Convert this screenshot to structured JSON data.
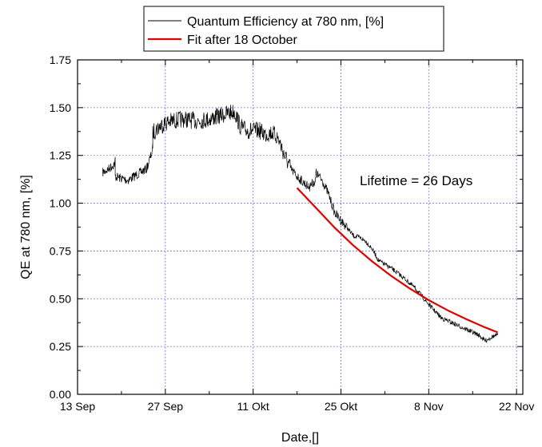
{
  "chart_data": {
    "type": "line",
    "title": "",
    "xlabel": "Date,[]",
    "ylabel": "QE at 780 nm, [%]",
    "x_ticks": [
      "13 Sep",
      "27 Sep",
      "11 Okt",
      "25 Okt",
      "8 Nov",
      "22 Nov"
    ],
    "x_tick_dates": [
      "2008-09-13",
      "2008-09-27",
      "2008-10-11",
      "2008-10-25",
      "2008-11-08",
      "2008-11-22"
    ],
    "xlim": [
      "2008-09-13",
      "2008-11-23"
    ],
    "ylim": [
      0,
      1.75
    ],
    "y_ticks": [
      "0.00",
      "0.25",
      "0.50",
      "0.75",
      "1.00",
      "1.25",
      "1.50",
      "1.75"
    ],
    "grid": true,
    "legend_position": "top-center",
    "annotation": "Lifetime = 26 Days",
    "series": [
      {
        "name": "Quantum Efficiency at 780 nm, [%]",
        "color": "#000000",
        "style": "noisy",
        "x": [
          "2008-09-17",
          "2008-09-18",
          "2008-09-19",
          "2008-09-19",
          "2008-09-20",
          "2008-09-21",
          "2008-09-22",
          "2008-09-23",
          "2008-09-24",
          "2008-09-25",
          "2008-09-25",
          "2008-09-26",
          "2008-09-27",
          "2008-09-28",
          "2008-09-30",
          "2008-10-02",
          "2008-10-04",
          "2008-10-06",
          "2008-10-07",
          "2008-10-08",
          "2008-10-09",
          "2008-10-10",
          "2008-10-12",
          "2008-10-13",
          "2008-10-14",
          "2008-10-15",
          "2008-10-16",
          "2008-10-17",
          "2008-10-18",
          "2008-10-19",
          "2008-10-20",
          "2008-10-20",
          "2008-10-21",
          "2008-10-21",
          "2008-10-22",
          "2008-10-23",
          "2008-10-24",
          "2008-10-25",
          "2008-10-26",
          "2008-10-27",
          "2008-10-28",
          "2008-10-29",
          "2008-10-30",
          "2008-10-31",
          "2008-11-02",
          "2008-11-04",
          "2008-11-06",
          "2008-11-07",
          "2008-11-08",
          "2008-11-10",
          "2008-11-12",
          "2008-11-14",
          "2008-11-16",
          "2008-11-17",
          "2008-11-18",
          "2008-11-19"
        ],
        "values": [
          1.16,
          1.18,
          1.21,
          1.14,
          1.13,
          1.12,
          1.14,
          1.16,
          1.18,
          1.28,
          1.37,
          1.4,
          1.42,
          1.43,
          1.44,
          1.43,
          1.44,
          1.46,
          1.47,
          1.48,
          1.4,
          1.38,
          1.38,
          1.36,
          1.37,
          1.34,
          1.25,
          1.18,
          1.14,
          1.11,
          1.08,
          1.09,
          1.12,
          1.16,
          1.12,
          1.05,
          0.95,
          0.91,
          0.87,
          0.83,
          0.82,
          0.8,
          0.76,
          0.7,
          0.66,
          0.61,
          0.55,
          0.51,
          0.47,
          0.4,
          0.37,
          0.34,
          0.31,
          0.28,
          0.3,
          0.31
        ]
      },
      {
        "name": "Fit after 18 October",
        "color": "#e00000",
        "style": "smooth",
        "x": [
          "2008-10-18",
          "2008-10-21",
          "2008-10-24",
          "2008-10-27",
          "2008-10-30",
          "2008-11-02",
          "2008-11-05",
          "2008-11-08",
          "2008-11-11",
          "2008-11-14",
          "2008-11-17",
          "2008-11-19"
        ],
        "values": [
          1.08,
          0.976,
          0.872,
          0.778,
          0.695,
          0.62,
          0.553,
          0.493,
          0.44,
          0.393,
          0.35,
          0.324
        ]
      }
    ]
  }
}
